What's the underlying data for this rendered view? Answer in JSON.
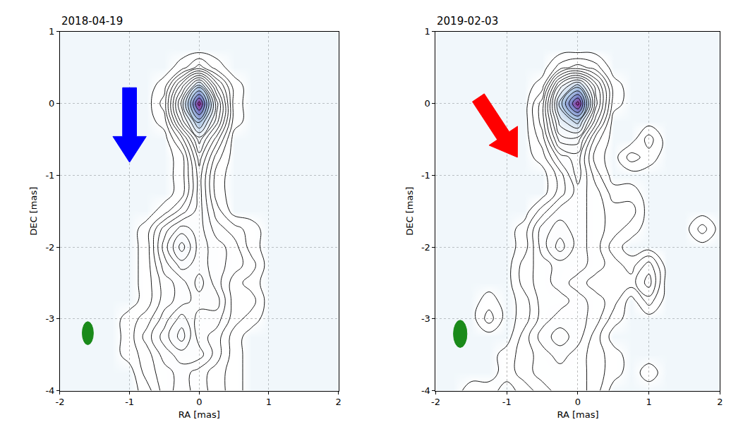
{
  "chart_data": [
    {
      "type": "contour",
      "title": "2018-04-19",
      "xlabel": "RA [mas]",
      "ylabel": "DEC [mas]",
      "xlim": [
        -2,
        2
      ],
      "ylim": [
        -4,
        1
      ],
      "xticks": [
        -2,
        -1,
        0,
        1,
        2
      ],
      "yticks": [
        -4,
        -3,
        -2,
        -1,
        0,
        1
      ],
      "grid": true,
      "contour_levels": {
        "start": 0.5,
        "end": 15.5,
        "size": 1
      },
      "x": [
        -2,
        -1.75,
        -1.5,
        -1.25,
        -1,
        -0.75,
        -0.5,
        -0.25,
        0,
        0.25,
        0.5,
        0.75,
        1,
        1.25,
        1.5,
        1.75,
        2
      ],
      "y": [
        -4,
        -3.75,
        -3.5,
        -3.25,
        -3,
        -2.75,
        -2.5,
        -2.25,
        -2,
        -1.75,
        -1.5,
        -1.25,
        -1,
        -0.75,
        -0.5,
        -0.25,
        0,
        0.25,
        0.5,
        0.75,
        1
      ],
      "cells": [
        [
          0,
          0,
          0,
          0,
          0,
          1,
          3,
          4,
          3,
          2,
          1,
          0,
          0,
          0,
          0,
          0,
          0
        ],
        [
          0,
          0,
          0,
          0,
          0,
          2,
          3,
          4,
          3,
          2,
          1,
          0,
          0,
          0,
          0,
          0,
          0
        ],
        [
          0,
          0,
          0,
          0,
          1,
          2,
          4,
          5,
          5,
          3,
          1,
          0,
          0,
          0,
          0,
          0,
          0
        ],
        [
          0,
          0,
          0,
          0,
          1,
          3,
          5,
          7,
          4,
          3,
          1,
          0,
          0,
          0,
          0,
          0,
          0
        ],
        [
          0,
          0,
          0,
          0,
          1,
          2,
          4,
          6,
          4,
          4,
          2,
          1,
          0,
          0,
          0,
          0,
          0
        ],
        [
          0,
          0,
          0,
          0,
          0,
          1,
          3,
          4,
          5,
          5,
          2,
          2,
          0,
          0,
          0,
          0,
          0
        ],
        [
          0,
          0,
          0,
          0,
          0,
          1,
          3,
          4,
          6,
          4,
          2,
          1,
          0,
          0,
          0,
          0,
          0
        ],
        [
          0,
          0,
          0,
          0,
          0,
          1,
          4,
          6,
          5,
          4,
          3,
          2,
          0,
          0,
          0,
          0,
          0
        ],
        [
          0,
          0,
          0,
          0,
          0,
          1,
          5,
          8,
          5,
          4,
          3,
          1,
          0,
          0,
          0,
          0,
          0
        ],
        [
          0,
          0,
          0,
          0,
          0,
          1,
          4,
          6,
          5,
          3,
          2,
          1,
          0,
          0,
          0,
          0,
          0
        ],
        [
          0,
          0,
          0,
          0,
          0,
          0,
          1,
          3,
          5,
          2,
          0,
          0,
          0,
          0,
          0,
          0,
          0
        ],
        [
          0,
          0,
          0,
          0,
          0,
          0,
          0,
          1,
          5,
          1,
          0,
          0,
          0,
          0,
          0,
          0,
          0
        ],
        [
          0,
          0,
          0,
          0,
          0,
          0,
          0,
          1,
          5,
          1,
          0,
          0,
          0,
          0,
          0,
          0,
          0
        ],
        [
          0,
          0,
          0,
          0,
          0,
          0,
          0,
          1,
          6,
          2,
          0,
          0,
          0,
          0,
          0,
          0,
          0
        ],
        [
          0,
          0,
          0,
          0,
          0,
          0,
          0,
          3,
          8,
          4,
          0,
          0,
          0,
          0,
          0,
          0,
          0
        ],
        [
          0,
          0,
          0,
          0,
          0,
          0,
          1,
          7,
          12,
          7,
          1,
          0,
          0,
          0,
          0,
          0,
          0
        ],
        [
          0,
          0,
          0,
          0,
          0,
          0,
          2,
          9,
          16,
          8,
          1,
          0,
          0,
          0,
          0,
          0,
          0
        ],
        [
          0,
          0,
          0,
          0,
          0,
          0,
          1,
          6,
          11,
          5,
          1,
          0,
          0,
          0,
          0,
          0,
          0
        ],
        [
          0,
          0,
          0,
          0,
          0,
          0,
          0,
          1,
          3,
          1,
          0,
          0,
          0,
          0,
          0,
          0,
          0
        ],
        [
          0,
          0,
          0,
          0,
          0,
          0,
          0,
          0,
          0,
          0,
          0,
          0,
          0,
          0,
          0,
          0,
          0
        ],
        [
          0,
          0,
          0,
          0,
          0,
          0,
          0,
          0,
          0,
          0,
          0,
          0,
          0,
          0,
          0,
          0,
          0
        ]
      ]
    },
    {
      "type": "contour",
      "title": "2019-02-03",
      "xlabel": "RA [mas]",
      "ylabel": "DEC [mas]",
      "xlim": [
        -2,
        2
      ],
      "ylim": [
        -4,
        1
      ],
      "xticks": [
        -2,
        -1,
        0,
        1,
        2
      ],
      "yticks": [
        -4,
        -3,
        -2,
        -1,
        0,
        1
      ],
      "grid": true,
      "contour_levels": {
        "start": 0.5,
        "end": 15.5,
        "size": 1
      },
      "x": [
        -2,
        -1.75,
        -1.5,
        -1.25,
        -1,
        -0.75,
        -0.5,
        -0.25,
        0,
        0.25,
        0.5,
        0.75,
        1,
        1.25,
        1.5,
        1.75,
        2
      ],
      "y": [
        -4,
        -3.75,
        -3.5,
        -3.25,
        -3,
        -2.75,
        -2.5,
        -2.25,
        -2,
        -1.75,
        -1.5,
        -1.25,
        -1,
        -0.75,
        -0.5,
        -0.25,
        0,
        0.25,
        0.5,
        0.75,
        1
      ],
      "cells": [
        [
          0,
          0,
          1,
          1,
          0,
          1,
          2,
          3,
          3,
          2,
          0,
          0,
          0,
          0,
          0,
          0,
          0
        ],
        [
          0,
          0,
          0,
          0,
          1,
          2,
          3,
          3,
          3,
          2,
          1,
          0,
          1,
          0,
          0,
          0,
          0
        ],
        [
          0,
          0,
          0,
          0,
          1,
          2,
          3,
          4,
          3,
          2,
          1,
          0,
          0,
          0,
          0,
          0,
          0
        ],
        [
          0,
          0,
          0,
          0,
          0,
          2,
          4,
          5,
          4,
          2,
          0,
          0,
          0,
          0,
          0,
          0,
          0
        ],
        [
          0,
          0,
          0,
          2,
          0,
          1,
          3,
          4,
          4,
          3,
          1,
          0,
          0,
          0,
          0,
          0,
          0
        ],
        [
          0,
          0,
          0,
          1,
          0,
          1,
          3,
          3,
          4,
          3,
          2,
          0,
          2,
          0,
          0,
          0,
          0
        ],
        [
          0,
          0,
          0,
          0,
          0,
          2,
          3,
          4,
          3,
          2,
          2,
          2,
          4,
          0,
          0,
          0,
          0
        ],
        [
          0,
          0,
          0,
          0,
          0,
          2,
          3,
          4,
          4,
          3,
          2,
          1,
          3,
          0,
          0,
          0,
          0
        ],
        [
          0,
          0,
          0,
          0,
          0,
          1,
          4,
          6,
          4,
          3,
          1,
          0,
          0,
          0,
          0,
          0,
          0
        ],
        [
          0,
          0,
          0,
          0,
          0,
          1,
          4,
          5,
          4,
          3,
          2,
          1,
          0,
          0,
          0,
          2,
          0
        ],
        [
          0,
          0,
          0,
          0,
          0,
          0,
          2,
          4,
          4,
          3,
          2,
          2,
          0,
          0,
          0,
          0,
          0
        ],
        [
          0,
          0,
          0,
          0,
          0,
          0,
          0,
          2,
          4,
          3,
          1,
          1,
          0,
          0,
          0,
          0,
          0
        ],
        [
          0,
          0,
          0,
          0,
          0,
          0,
          0,
          2,
          5,
          2,
          0,
          0,
          0,
          0,
          0,
          0,
          0
        ],
        [
          0,
          0,
          0,
          0,
          0,
          0,
          1,
          4,
          5,
          1,
          0,
          2,
          1,
          0,
          0,
          0,
          0
        ],
        [
          0,
          0,
          0,
          0,
          0,
          0,
          2,
          7,
          7,
          2,
          0,
          0,
          2,
          0,
          0,
          0,
          0
        ],
        [
          0,
          0,
          0,
          0,
          0,
          0,
          3,
          9,
          11,
          5,
          0,
          0,
          0,
          0,
          0,
          0,
          0
        ],
        [
          0,
          0,
          0,
          0,
          0,
          0,
          3,
          11,
          16,
          7,
          1,
          0,
          0,
          0,
          0,
          0,
          0
        ],
        [
          0,
          0,
          0,
          0,
          0,
          0,
          1,
          8,
          11,
          6,
          1,
          0,
          0,
          0,
          0,
          0,
          0
        ],
        [
          0,
          0,
          0,
          0,
          0,
          0,
          0,
          2,
          3,
          2,
          0,
          0,
          0,
          0,
          0,
          0,
          0
        ],
        [
          0,
          0,
          0,
          0,
          0,
          0,
          0,
          0,
          0,
          0,
          0,
          0,
          0,
          0,
          0,
          0,
          0
        ],
        [
          0,
          0,
          0,
          0,
          0,
          0,
          0,
          0,
          0,
          0,
          0,
          0,
          0,
          0,
          0,
          0,
          0
        ]
      ]
    }
  ]
}
